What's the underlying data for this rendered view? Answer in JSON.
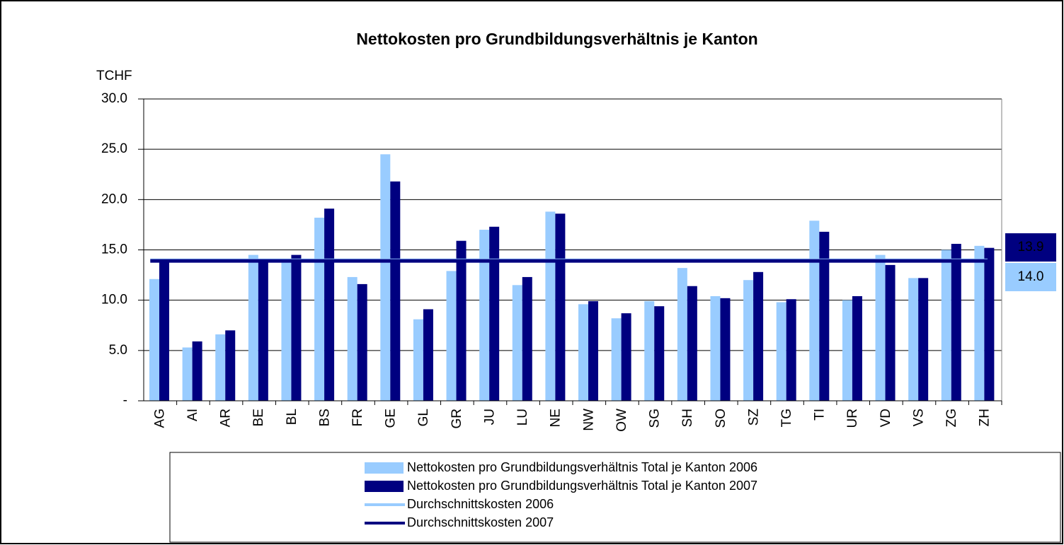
{
  "chart_data": {
    "type": "bar",
    "title": "Nettokosten pro Grundbildungsverhältnis je Kanton",
    "y_axis_label": "TCHF",
    "categories": [
      "AG",
      "AI",
      "AR",
      "BE",
      "BL",
      "BS",
      "FR",
      "GE",
      "GL",
      "GR",
      "JU",
      "LU",
      "NE",
      "NW",
      "OW",
      "SG",
      "SH",
      "SO",
      "SZ",
      "TG",
      "TI",
      "UR",
      "VD",
      "VS",
      "ZG",
      "ZH"
    ],
    "series": [
      {
        "name": "Nettokosten pro Grundbildungsverhältnis Total je Kanton 2006",
        "color": "#99ccff",
        "values": [
          12.1,
          5.3,
          6.6,
          14.5,
          14.0,
          18.2,
          12.3,
          24.5,
          8.1,
          12.9,
          17.0,
          11.5,
          18.8,
          9.6,
          8.2,
          9.9,
          13.2,
          10.4,
          12.0,
          9.8,
          17.9,
          10.0,
          14.5,
          12.2,
          15.0,
          15.4
        ]
      },
      {
        "name": "Nettokosten pro Grundbildungsverhältnis Total je Kanton 2007",
        "color": "#000080",
        "values": [
          13.9,
          5.9,
          7.0,
          14.0,
          14.5,
          19.1,
          11.6,
          21.8,
          9.1,
          15.9,
          17.3,
          12.3,
          18.6,
          9.9,
          8.7,
          9.4,
          11.4,
          10.2,
          12.8,
          10.1,
          16.8,
          10.4,
          13.5,
          12.2,
          15.6,
          15.2
        ]
      }
    ],
    "averages": [
      {
        "name": "Durchschnittskosten 2006",
        "color": "#99ccff",
        "value": 14.0,
        "value_label": "14.0"
      },
      {
        "name": "Durchschnittskosten 2007",
        "color": "#000080",
        "value": 13.9
      }
    ],
    "ylim": [
      0,
      30
    ],
    "yticks": [
      {
        "value": 0,
        "label": "-"
      },
      {
        "value": 5,
        "label": "5.0"
      },
      {
        "value": 10,
        "label": "10.0"
      },
      {
        "value": 15,
        "label": "15.0"
      },
      {
        "value": 20,
        "label": "20.0"
      },
      {
        "value": 25,
        "label": "25.0"
      },
      {
        "value": 30,
        "label": "30.0"
      }
    ],
    "grid": true
  }
}
